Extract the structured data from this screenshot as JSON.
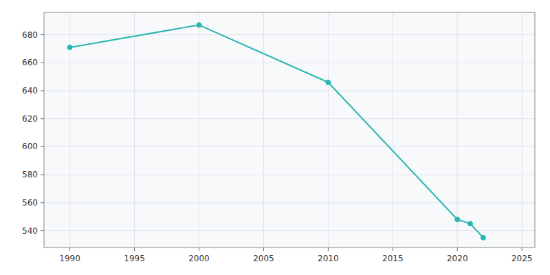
{
  "chart_data": {
    "type": "line",
    "x": [
      1990,
      2000,
      2010,
      2020,
      2021,
      2022
    ],
    "values": [
      671,
      687,
      646,
      548,
      545,
      535
    ],
    "color": "#2ab5b0",
    "marker": "circle",
    "xlim": [
      1988,
      2026
    ],
    "ylim": [
      528,
      696
    ],
    "xticks": [
      1990,
      1995,
      2000,
      2005,
      2010,
      2015,
      2020,
      2025
    ],
    "yticks": [
      540,
      560,
      580,
      600,
      620,
      640,
      660,
      680
    ],
    "grid": true
  }
}
